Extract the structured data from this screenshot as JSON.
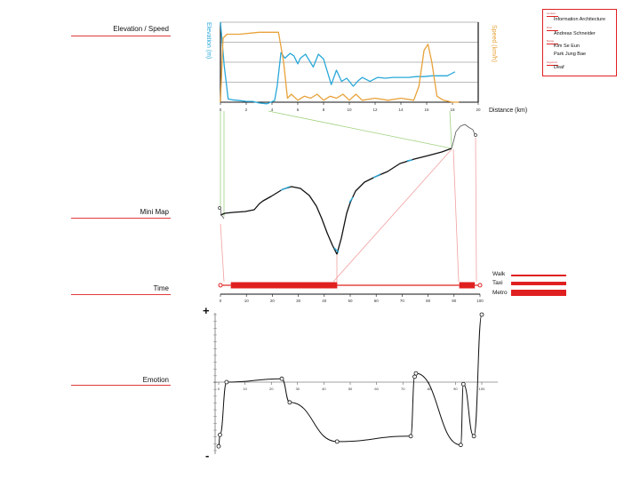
{
  "sections": {
    "elevation_speed": "Elevation / Speed",
    "mini_map": "Mini Map",
    "time": "Time",
    "emotion": "Emotion"
  },
  "info": [
    {
      "key": "Lecture",
      "value": "Information Architecture"
    },
    {
      "key": "Prof.",
      "value": "Andreas Schneider"
    },
    {
      "key": "Name",
      "value": "Kim Se Eun"
    },
    {
      "key": "",
      "value": "Park Jung Bae"
    },
    {
      "key": "Keyword",
      "value": "Deaf"
    }
  ],
  "legend": [
    {
      "label": "Walk",
      "color": "#e02020",
      "style": "thin"
    },
    {
      "label": "Taxi",
      "color": "#e02020",
      "style": "medium"
    },
    {
      "label": "Metro",
      "color": "#e02020",
      "style": "thick"
    }
  ],
  "colors": {
    "elevation": "#29a8d9",
    "speed": "#e8a23a",
    "accent": "#e02020",
    "map_path": "#111111"
  },
  "chart_data": [
    {
      "type": "line",
      "title": "Elevation / Speed",
      "xlabel": "Distance (km)",
      "ylabel_left": "Elevation (m)",
      "ylabel_right": "Speed (km/h)",
      "x_ticks": [
        "0",
        "2",
        "4",
        "6",
        "8",
        "10",
        "12",
        "14",
        "16",
        "18",
        "20"
      ],
      "xlim": [
        0,
        20
      ],
      "series": [
        {
          "name": "Elevation (m)",
          "axis": "left",
          "x": [
            0,
            0.3,
            0.6,
            0.9,
            1.5,
            2.0,
            2.5,
            3.0,
            3.6,
            4.2,
            4.4,
            4.7,
            5.0,
            5.4,
            5.7,
            6.0,
            6.2,
            6.6,
            6.9,
            7.2,
            7.6,
            8.0,
            8.6,
            9.0,
            9.4,
            9.8,
            10.3,
            10.7,
            11.0,
            11.6,
            12.2,
            12.8,
            13.4,
            14.0,
            14.6,
            15.2,
            15.8,
            16.4,
            17.0,
            17.6,
            18.2
          ],
          "values": [
            100,
            45,
            4,
            3,
            2,
            1,
            1,
            -1,
            -2,
            2,
            20,
            62,
            55,
            61,
            58,
            48,
            55,
            60,
            52,
            44,
            60,
            54,
            22,
            40,
            26,
            30,
            20,
            27,
            31,
            26,
            31,
            30,
            31,
            31,
            31,
            32,
            32,
            33,
            33,
            33,
            38
          ]
        },
        {
          "name": "Speed (km/h)",
          "axis": "right",
          "x": [
            0,
            0.2,
            0.5,
            1.5,
            3.0,
            4.5,
            4.9,
            5.2,
            5.5,
            6.0,
            6.5,
            7.0,
            7.5,
            8.0,
            8.5,
            9.0,
            9.5,
            10.0,
            10.5,
            11.0,
            12.0,
            13.0,
            14.0,
            15.0,
            15.4,
            15.8,
            16.1,
            16.4,
            16.8,
            17.3,
            18.0,
            18.5
          ],
          "values": [
            0,
            32,
            34,
            34,
            35,
            35,
            20,
            2,
            4,
            1,
            3,
            2,
            4,
            1,
            3,
            2,
            4,
            1,
            4,
            1,
            2,
            1,
            2,
            1,
            8,
            26,
            29,
            20,
            3,
            1,
            0,
            0
          ]
        }
      ],
      "ylim_left": [
        0,
        100
      ],
      "ylim_right": [
        0,
        40
      ],
      "grid": true
    },
    {
      "type": "bar",
      "title": "Time",
      "x_ticks": [
        "0",
        "10",
        "20",
        "30",
        "40",
        "50",
        "60",
        "70",
        "80",
        "90",
        "100"
      ],
      "xlim": [
        0,
        100
      ],
      "segments": [
        {
          "mode": "Walk",
          "start": 0,
          "end": 4
        },
        {
          "mode": "Metro",
          "start": 4,
          "end": 45
        },
        {
          "mode": "Walk",
          "start": 45,
          "end": 92
        },
        {
          "mode": "Metro",
          "start": 92,
          "end": 98
        },
        {
          "mode": "Walk",
          "start": 98,
          "end": 100
        }
      ]
    },
    {
      "type": "line",
      "title": "Emotion",
      "x_ticks": [
        "0",
        "10",
        "20",
        "30",
        "40",
        "50",
        "60",
        "70",
        "80",
        "90",
        "100"
      ],
      "xlim": [
        0,
        100
      ],
      "ylim": [
        -1,
        1
      ],
      "y_top_label": "+",
      "y_bottom_label": "-",
      "series": [
        {
          "name": "",
          "x": [
            0,
            0.5,
            3,
            24,
            27,
            45,
            73,
            74.5,
            75,
            92,
            93,
            97,
            100
          ],
          "values": [
            -0.95,
            -0.78,
            0,
            0.05,
            -0.3,
            -0.88,
            -0.8,
            0.08,
            0.13,
            -0.93,
            -0.03,
            -0.8,
            1.0
          ]
        }
      ]
    }
  ]
}
